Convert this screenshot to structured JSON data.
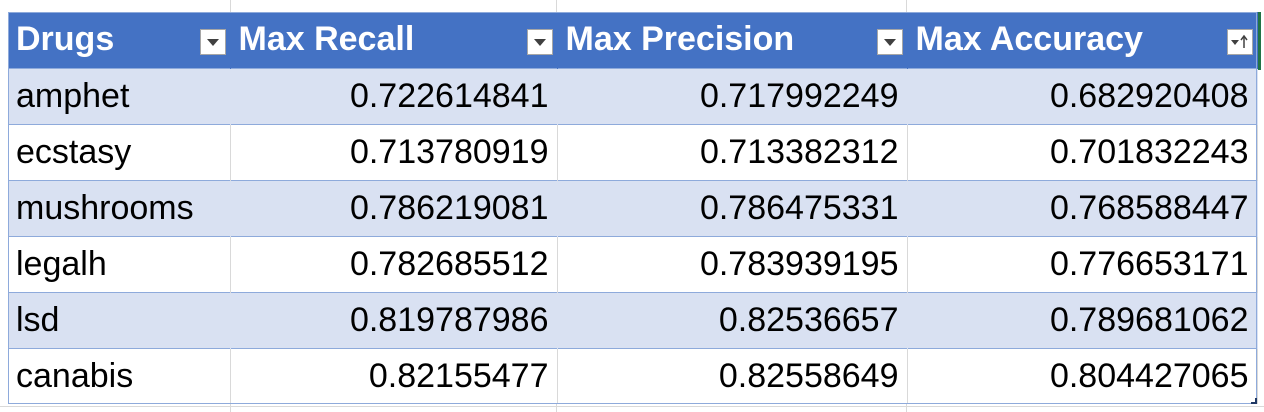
{
  "table": {
    "headers": [
      {
        "label": "Drugs",
        "filter_icon": "dropdown-arrow-icon"
      },
      {
        "label": "Max Recall",
        "filter_icon": "dropdown-arrow-icon"
      },
      {
        "label": "Max Precision",
        "filter_icon": "dropdown-arrow-icon"
      },
      {
        "label": "Max Accuracy",
        "filter_icon": "sort-ascending-filter-icon"
      }
    ],
    "rows": [
      {
        "drug": "amphet",
        "max_recall": "0.722614841",
        "max_precision": "0.717992249",
        "max_accuracy": "0.682920408"
      },
      {
        "drug": "ecstasy",
        "max_recall": "0.713780919",
        "max_precision": "0.713382312",
        "max_accuracy": "0.701832243"
      },
      {
        "drug": "mushrooms",
        "max_recall": "0.786219081",
        "max_precision": "0.786475331",
        "max_accuracy": "0.768588447"
      },
      {
        "drug": "legalh",
        "max_recall": "0.782685512",
        "max_precision": "0.783939195",
        "max_accuracy": "0.776653171"
      },
      {
        "drug": "lsd",
        "max_recall": "0.819787986",
        "max_precision": "0.82536657",
        "max_accuracy": "0.789681062"
      },
      {
        "drug": "canabis",
        "max_recall": "0.82155477",
        "max_precision": "0.82558649",
        "max_accuracy": "0.804427065"
      }
    ]
  },
  "colors": {
    "header_background": "#4472c4",
    "header_text": "#ffffff",
    "band_row": "#d9e1f2",
    "plain_row": "#ffffff",
    "row_border": "#8eaadb",
    "selection": "#217346"
  }
}
